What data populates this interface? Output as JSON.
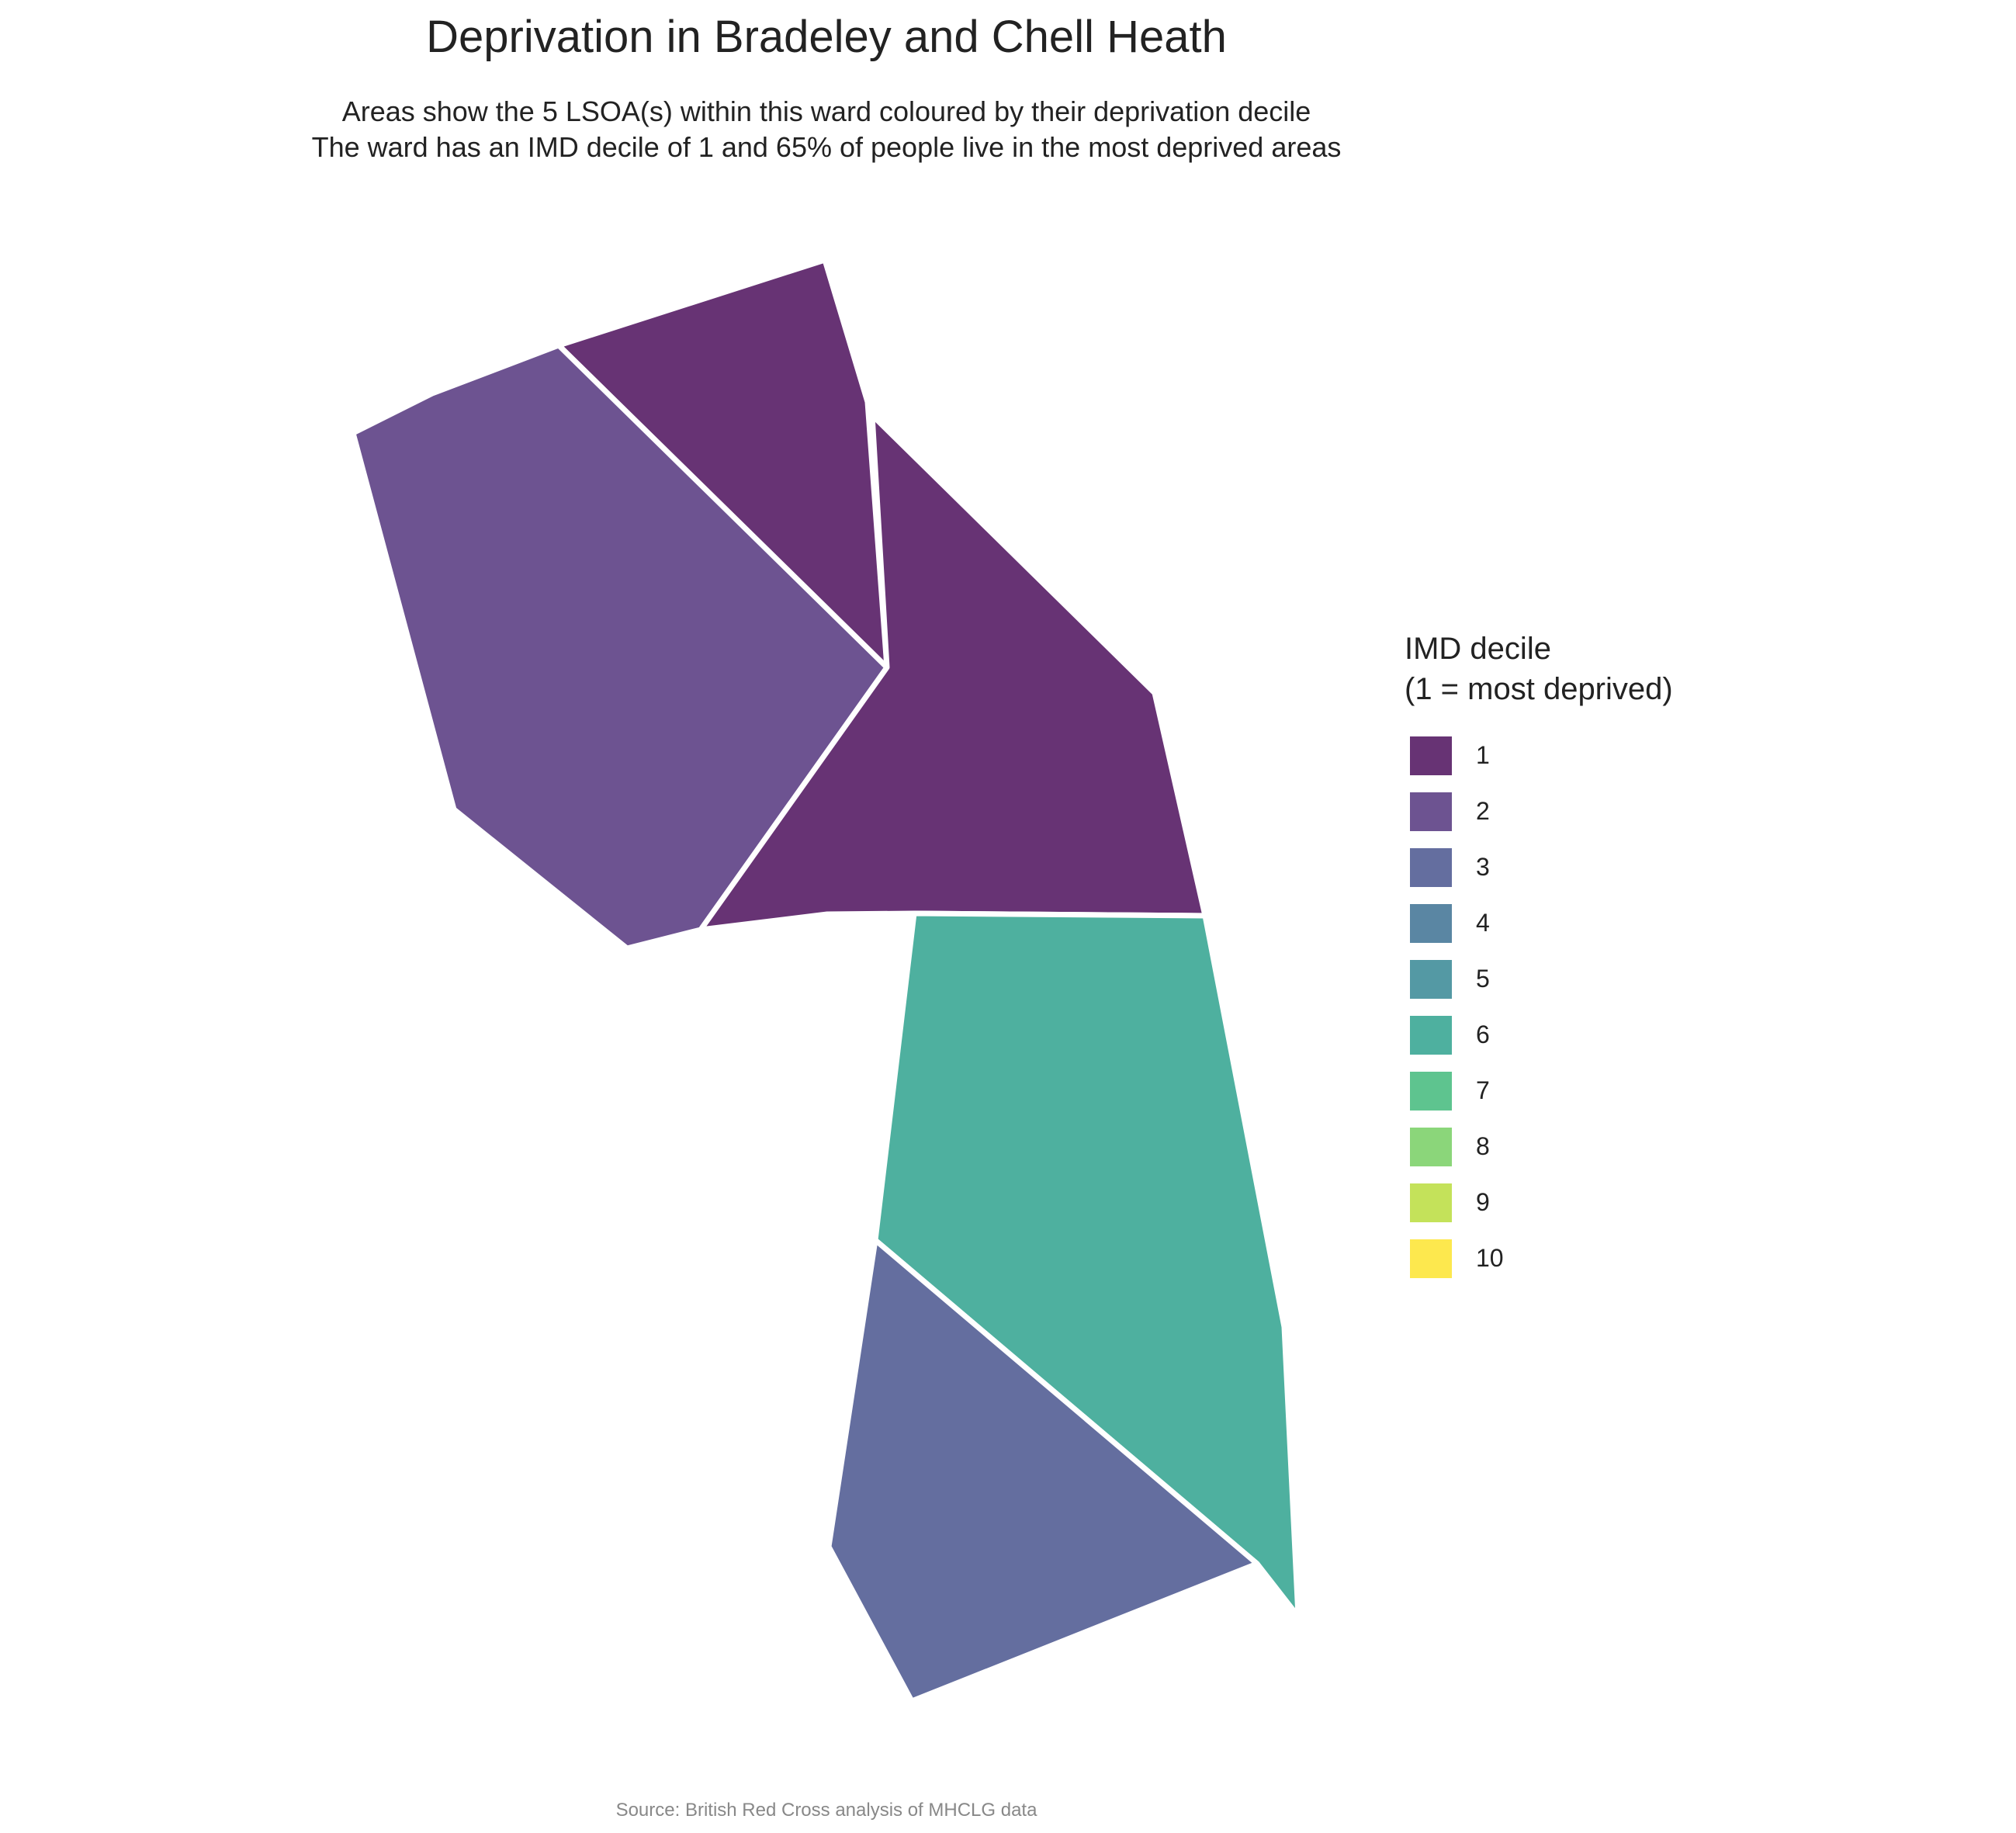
{
  "title": "Deprivation in Bradeley and Chell Heath",
  "subtitle_line1": "Areas show the 5 LSOA(s) within this ward coloured by their deprivation decile",
  "subtitle_line2": "The ward has an IMD decile of 1 and 65% of people live in the most deprived areas",
  "caption": "Source: British Red Cross analysis of MHCLG data",
  "legend": {
    "title_line1": "IMD decile",
    "title_line2": "(1 = most deprived)",
    "items": [
      {
        "label": "1",
        "color": "#673374"
      },
      {
        "label": "2",
        "color": "#6d5391"
      },
      {
        "label": "3",
        "color": "#646e9f"
      },
      {
        "label": "4",
        "color": "#5a86a3"
      },
      {
        "label": "5",
        "color": "#5499a4"
      },
      {
        "label": "6",
        "color": "#4eb09f"
      },
      {
        "label": "7",
        "color": "#5ec48f"
      },
      {
        "label": "8",
        "color": "#8bd67a"
      },
      {
        "label": "9",
        "color": "#c4e25a"
      },
      {
        "label": "10",
        "color": "#fde84e"
      }
    ]
  },
  "map": {
    "boundary_color": "#ffffff",
    "areas": [
      {
        "id": "lsoa-north",
        "decile": 1
      },
      {
        "id": "lsoa-west",
        "decile": 2
      },
      {
        "id": "lsoa-central",
        "decile": 1
      },
      {
        "id": "lsoa-south-east",
        "decile": 6
      },
      {
        "id": "lsoa-south",
        "decile": 3
      }
    ]
  }
}
